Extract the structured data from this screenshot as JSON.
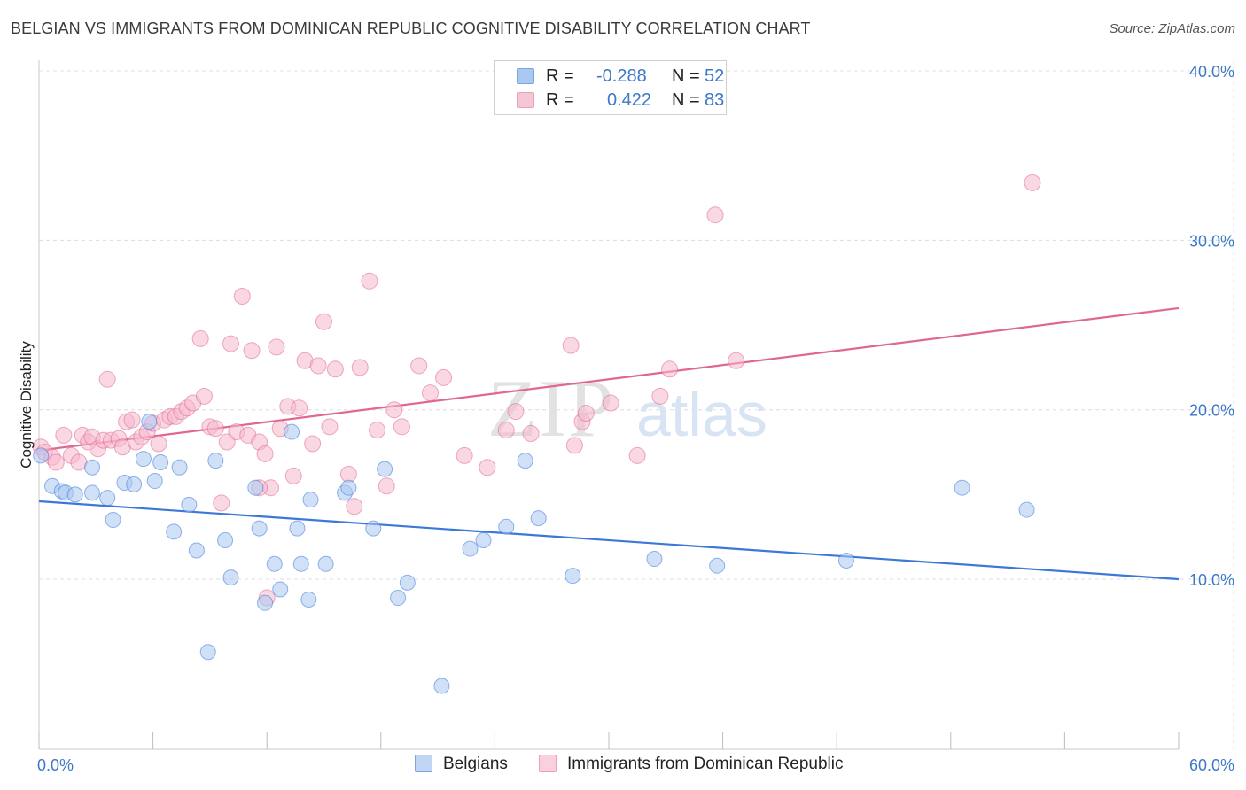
{
  "title": "BELGIAN VS IMMIGRANTS FROM DOMINICAN REPUBLIC COGNITIVE DISABILITY CORRELATION CHART",
  "source": "Source: ZipAtlas.com",
  "watermark": {
    "zip": "ZIP",
    "atlas": "atlas"
  },
  "legend": {
    "rows": [
      {
        "r_label": "R =",
        "r_value": "-0.288",
        "n_label": "N =",
        "n_value": "52",
        "color": "#aac8f0"
      },
      {
        "r_label": "R =",
        "r_value": "0.422",
        "n_label": "N =",
        "n_value": "83",
        "color": "#f5b8cc"
      }
    ]
  },
  "bottom_legend": [
    "Belgians",
    "Immigrants from Dominican Republic"
  ],
  "chart_data": {
    "type": "scatter",
    "title": "BELGIAN VS IMMIGRANTS FROM DOMINICAN REPUBLIC COGNITIVE DISABILITY CORRELATION CHART",
    "xlabel": "",
    "ylabel": "Cognitive Disability",
    "xlim": [
      0,
      60
    ],
    "ylim": [
      0,
      42
    ],
    "x_tick_labels": [
      "0.0%",
      "60.0%"
    ],
    "y_ticks": [
      10,
      20,
      30,
      40
    ],
    "y_tick_labels": [
      "10.0%",
      "20.0%",
      "30.0%",
      "40.0%"
    ],
    "grid": true,
    "legend_placement": "top-center",
    "series": [
      {
        "name": "Belgians",
        "color": "#3c78d8",
        "fill": "#aac8f0",
        "trend": {
          "x": [
            0,
            60
          ],
          "y": [
            14.6,
            10.0
          ]
        },
        "points": [
          [
            0.1,
            17.3
          ],
          [
            0.7,
            15.5
          ],
          [
            1.2,
            15.2
          ],
          [
            1.4,
            15.1
          ],
          [
            1.9,
            15.0
          ],
          [
            2.8,
            15.1
          ],
          [
            2.8,
            16.6
          ],
          [
            3.6,
            14.8
          ],
          [
            3.9,
            13.5
          ],
          [
            4.5,
            15.7
          ],
          [
            5.0,
            15.6
          ],
          [
            5.5,
            17.1
          ],
          [
            5.8,
            19.3
          ],
          [
            6.1,
            15.8
          ],
          [
            6.4,
            16.9
          ],
          [
            7.1,
            12.8
          ],
          [
            7.4,
            16.6
          ],
          [
            7.9,
            14.4
          ],
          [
            8.3,
            11.7
          ],
          [
            8.9,
            5.7
          ],
          [
            9.3,
            17.0
          ],
          [
            9.8,
            12.3
          ],
          [
            10.1,
            10.1
          ],
          [
            11.4,
            15.4
          ],
          [
            11.6,
            13.0
          ],
          [
            11.9,
            8.6
          ],
          [
            12.4,
            10.9
          ],
          [
            12.7,
            9.4
          ],
          [
            13.3,
            18.7
          ],
          [
            13.6,
            13.0
          ],
          [
            13.8,
            10.9
          ],
          [
            14.2,
            8.8
          ],
          [
            14.3,
            14.7
          ],
          [
            15.1,
            10.9
          ],
          [
            16.1,
            15.1
          ],
          [
            16.3,
            15.4
          ],
          [
            17.6,
            13.0
          ],
          [
            18.2,
            16.5
          ],
          [
            18.9,
            8.9
          ],
          [
            19.4,
            9.8
          ],
          [
            21.2,
            3.7
          ],
          [
            22.7,
            11.8
          ],
          [
            23.4,
            12.3
          ],
          [
            24.6,
            13.1
          ],
          [
            25.6,
            17.0
          ],
          [
            26.3,
            13.6
          ],
          [
            28.1,
            10.2
          ],
          [
            32.4,
            11.2
          ],
          [
            35.7,
            10.8
          ],
          [
            42.5,
            11.1
          ],
          [
            48.6,
            15.4
          ],
          [
            52.0,
            14.1
          ]
        ]
      },
      {
        "name": "Immigrants from Dominican Republic",
        "color": "#e06890",
        "fill": "#f5b8cc",
        "trend": {
          "x": [
            0,
            60
          ],
          "y": [
            17.6,
            26.0
          ]
        },
        "points": [
          [
            0.1,
            17.8
          ],
          [
            0.3,
            17.5
          ],
          [
            0.7,
            17.2
          ],
          [
            0.9,
            16.9
          ],
          [
            1.3,
            18.5
          ],
          [
            1.7,
            17.3
          ],
          [
            2.1,
            16.9
          ],
          [
            2.3,
            18.5
          ],
          [
            2.6,
            18.1
          ],
          [
            2.8,
            18.4
          ],
          [
            3.1,
            17.7
          ],
          [
            3.4,
            18.2
          ],
          [
            3.6,
            21.8
          ],
          [
            3.8,
            18.2
          ],
          [
            4.2,
            18.3
          ],
          [
            4.4,
            17.8
          ],
          [
            4.6,
            19.3
          ],
          [
            4.9,
            19.4
          ],
          [
            5.1,
            18.1
          ],
          [
            5.4,
            18.4
          ],
          [
            5.7,
            18.7
          ],
          [
            6.0,
            19.2
          ],
          [
            6.3,
            18.0
          ],
          [
            6.6,
            19.4
          ],
          [
            6.9,
            19.6
          ],
          [
            7.2,
            19.6
          ],
          [
            7.5,
            19.9
          ],
          [
            7.8,
            20.1
          ],
          [
            8.1,
            20.4
          ],
          [
            8.5,
            24.2
          ],
          [
            8.7,
            20.8
          ],
          [
            9.0,
            19.0
          ],
          [
            9.3,
            18.9
          ],
          [
            9.6,
            14.5
          ],
          [
            9.9,
            18.1
          ],
          [
            10.1,
            23.9
          ],
          [
            10.4,
            18.7
          ],
          [
            10.7,
            26.7
          ],
          [
            11.0,
            18.5
          ],
          [
            11.2,
            23.5
          ],
          [
            11.6,
            18.1
          ],
          [
            11.9,
            17.4
          ],
          [
            12.2,
            15.4
          ],
          [
            12.5,
            23.7
          ],
          [
            12.7,
            18.9
          ],
          [
            13.1,
            20.2
          ],
          [
            13.4,
            16.1
          ],
          [
            13.7,
            20.1
          ],
          [
            14.0,
            22.9
          ],
          [
            14.4,
            18.0
          ],
          [
            14.7,
            22.6
          ],
          [
            15.0,
            25.2
          ],
          [
            15.3,
            19.0
          ],
          [
            15.6,
            22.4
          ],
          [
            16.3,
            16.2
          ],
          [
            16.6,
            14.3
          ],
          [
            16.9,
            22.5
          ],
          [
            17.4,
            27.6
          ],
          [
            17.8,
            18.8
          ],
          [
            18.3,
            15.5
          ],
          [
            18.7,
            20.0
          ],
          [
            19.1,
            19.0
          ],
          [
            20.0,
            22.6
          ],
          [
            20.6,
            21.0
          ],
          [
            21.3,
            21.9
          ],
          [
            22.4,
            17.3
          ],
          [
            23.6,
            16.6
          ],
          [
            24.6,
            18.8
          ],
          [
            25.1,
            19.9
          ],
          [
            25.9,
            18.6
          ],
          [
            28.0,
            23.8
          ],
          [
            28.2,
            17.9
          ],
          [
            28.6,
            19.3
          ],
          [
            28.8,
            19.8
          ],
          [
            30.1,
            20.4
          ],
          [
            31.5,
            17.3
          ],
          [
            32.7,
            20.8
          ],
          [
            33.2,
            22.4
          ],
          [
            35.6,
            31.5
          ],
          [
            36.7,
            22.9
          ],
          [
            52.3,
            33.4
          ],
          [
            12.0,
            8.9
          ],
          [
            11.6,
            15.4
          ]
        ]
      }
    ]
  }
}
